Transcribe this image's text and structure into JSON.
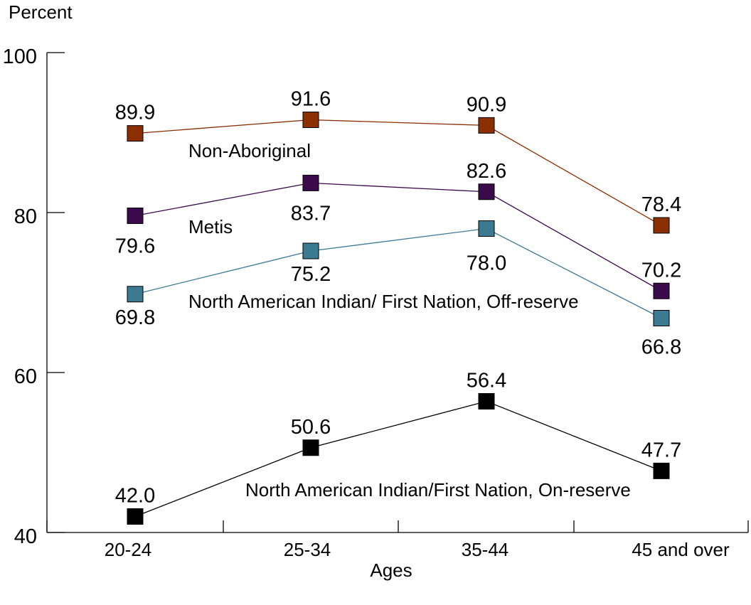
{
  "chart_data": {
    "type": "line",
    "ylabel": "Percent",
    "xlabel": "Ages",
    "ylim": [
      40,
      100
    ],
    "yticks": [
      "40",
      "60",
      "80",
      "100"
    ],
    "categories": [
      "20-24",
      "25-34",
      "35-44",
      "45 and over"
    ],
    "grid": false,
    "legend": "inline labels",
    "series": [
      {
        "name": "Non-Aboriginal",
        "color": "#8b2e00",
        "values": [
          89.9,
          91.6,
          90.9,
          78.4
        ],
        "labels": [
          "89.9",
          "91.6",
          "90.9",
          "78.4"
        ]
      },
      {
        "name": "Metis",
        "color": "#3a0a4a",
        "values": [
          79.6,
          83.7,
          82.6,
          70.2
        ],
        "labels": [
          "79.6",
          "83.7",
          "82.6",
          "70.2"
        ]
      },
      {
        "name": "North American Indian/ First Nation, Off-reserve",
        "color": "#3c7a92",
        "values": [
          69.8,
          75.2,
          78.0,
          66.8
        ],
        "labels": [
          "69.8",
          "75.2",
          "78.0",
          "66.8"
        ]
      },
      {
        "name": "North American Indian/First Nation, On-reserve",
        "color": "#000000",
        "values": [
          42.0,
          50.6,
          56.4,
          47.7
        ],
        "labels": [
          "42.0",
          "50.6",
          "56.4",
          "47.7"
        ]
      }
    ]
  }
}
